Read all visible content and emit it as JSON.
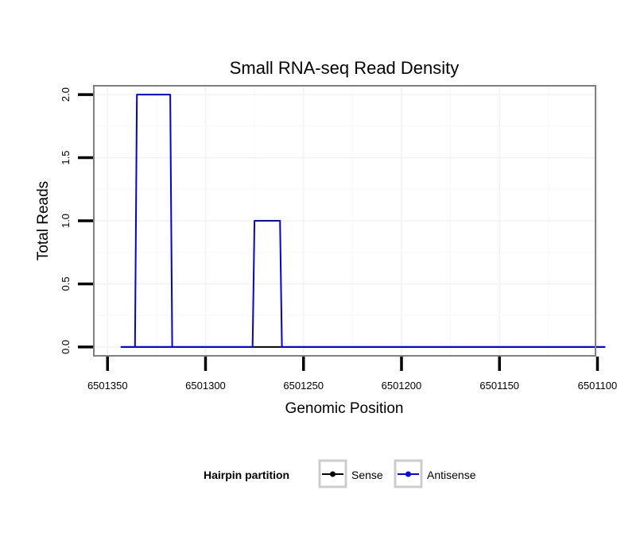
{
  "chart_data": {
    "type": "line",
    "title": "Small RNA-seq Read Density",
    "xlabel": "Genomic Position",
    "ylabel": "Total Reads",
    "x_reversed": true,
    "xlim": [
      6501357,
      6501101
    ],
    "ylim": [
      -0.07,
      2.07
    ],
    "x_ticks": [
      6501350,
      6501300,
      6501250,
      6501200,
      6501150,
      6501100
    ],
    "x_tick_labels": [
      "6501350",
      "6501300",
      "6501250",
      "6501200",
      "6501150",
      "6501100"
    ],
    "y_ticks": [
      0.0,
      0.5,
      1.0,
      1.5,
      2.0
    ],
    "y_tick_labels": [
      "0.0",
      "0.5",
      "1.0",
      "1.5",
      "2.0"
    ],
    "grid": true,
    "legend": {
      "title": "Hairpin partition",
      "position": "bottom"
    },
    "series": [
      {
        "name": "Sense",
        "color": "#000000",
        "x": [
          6501343,
          6501096
        ],
        "y": [
          0,
          0
        ]
      },
      {
        "name": "Antisense",
        "color": "#0000ee",
        "x": [
          6501343,
          6501336,
          6501335,
          6501318,
          6501317,
          6501343,
          6501276,
          6501275,
          6501262,
          6501261,
          6501096
        ],
        "y": [
          0,
          0,
          2,
          2,
          0,
          0,
          0,
          1,
          1,
          0,
          0
        ]
      }
    ]
  }
}
